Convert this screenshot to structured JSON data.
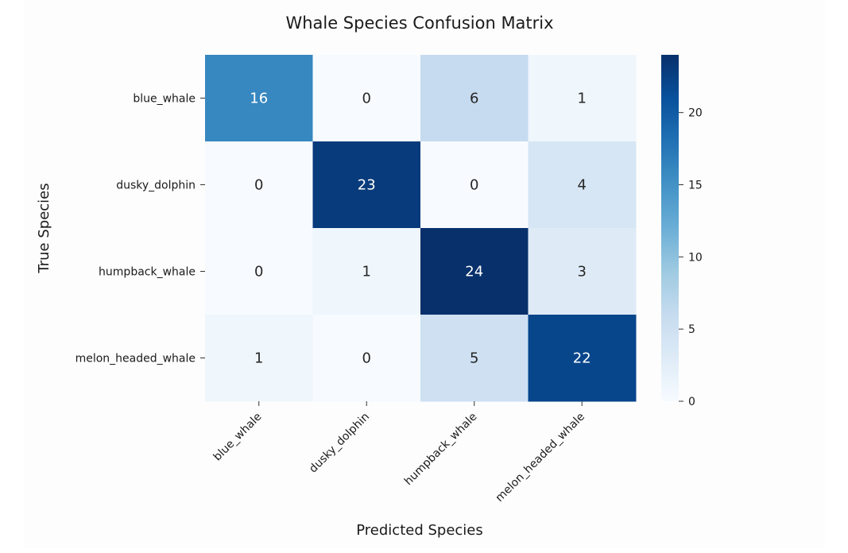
{
  "chart_data": {
    "type": "heatmap",
    "title": "Whale Species Confusion Matrix",
    "xlabel": "Predicted Species",
    "ylabel": "True Species",
    "x_categories": [
      "blue_whale",
      "dusky_dolphin",
      "humpback_whale",
      "melon_headed_whale"
    ],
    "y_categories": [
      "blue_whale",
      "dusky_dolphin",
      "humpback_whale",
      "melon_headed_whale"
    ],
    "values": [
      [
        16,
        0,
        6,
        1
      ],
      [
        0,
        23,
        0,
        4
      ],
      [
        0,
        1,
        24,
        3
      ],
      [
        1,
        0,
        5,
        22
      ]
    ],
    "colormap": "Blues",
    "color_range": [
      0,
      24
    ],
    "colorbar_ticks": [
      0,
      5,
      10,
      15,
      20
    ],
    "colorbar_tick_labels": [
      "0",
      "5",
      "10",
      "15",
      "20"
    ],
    "grid": false,
    "colors": {
      "low": "#f7fbff",
      "mid": "#6baed6",
      "high": "#08306b"
    }
  }
}
